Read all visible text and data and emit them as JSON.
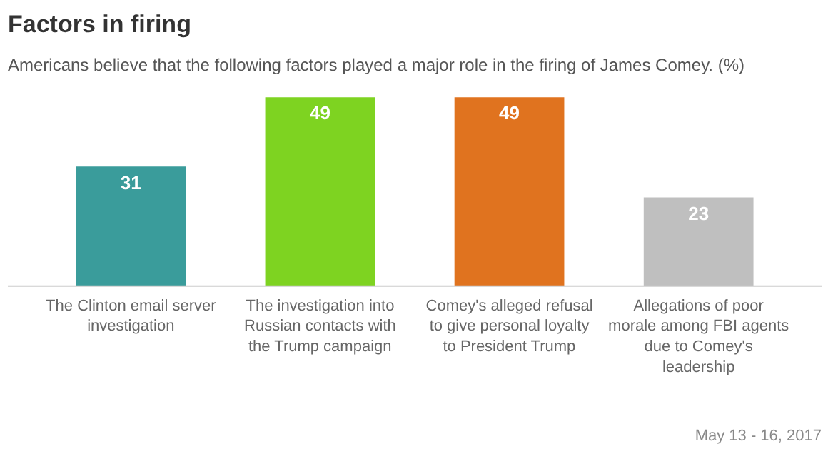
{
  "chart_data": {
    "type": "bar",
    "title": "Factors in firing",
    "subtitle": "Americans believe that the following factors played a major role in the firing of James Comey. (%)",
    "categories": [
      "The Clinton email server investigation",
      "The investigation into Russian contacts with the Trump campaign",
      "Comey's alleged refusal to give personal loyalty to President Trump",
      "Allegations of poor morale among FBI agents due to Comey's leadership"
    ],
    "values": [
      31,
      49,
      49,
      23
    ],
    "colors": [
      "#3a9c9b",
      "#7ed321",
      "#e0731f",
      "#bfbfbf"
    ],
    "data_labels": true,
    "annotations": [
      "May 13 - 16, 2017"
    ]
  }
}
